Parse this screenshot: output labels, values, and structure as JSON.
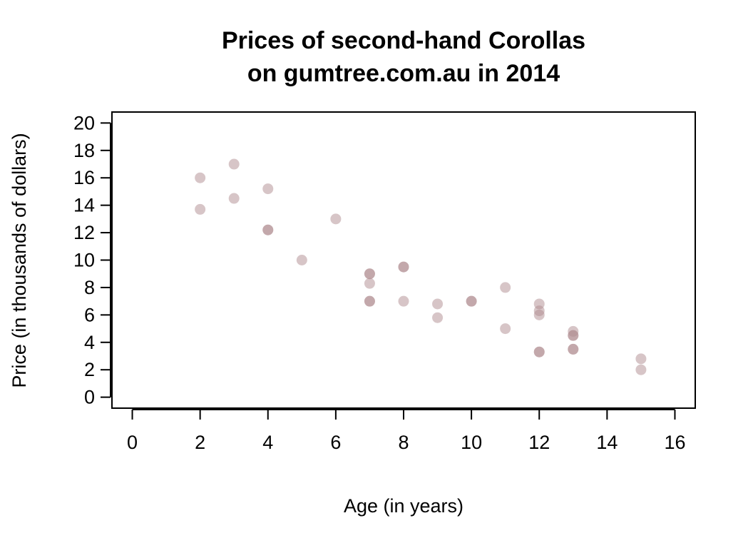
{
  "chart_data": {
    "type": "scatter",
    "title": [
      "Prices of second-hand Corollas",
      "on gumtree.com.au in 2014"
    ],
    "xlabel": "Age (in years)",
    "ylabel": "Price (in thousands of dollars)",
    "xlim": [
      -0.6,
      16.6
    ],
    "ylim": [
      -0.8,
      20.8
    ],
    "xticks": [
      0,
      2,
      4,
      6,
      8,
      10,
      12,
      14,
      16
    ],
    "yticks": [
      0,
      2,
      4,
      6,
      8,
      10,
      12,
      14,
      16,
      18,
      20
    ],
    "grid": false,
    "point_color": "#b08c8f",
    "point_opacity": 0.5,
    "points": [
      {
        "x": 2,
        "y": 16.0
      },
      {
        "x": 2,
        "y": 13.7
      },
      {
        "x": 3,
        "y": 17.0
      },
      {
        "x": 3,
        "y": 14.5
      },
      {
        "x": 4,
        "y": 15.2
      },
      {
        "x": 4,
        "y": 12.2
      },
      {
        "x": 4,
        "y": 12.2
      },
      {
        "x": 5,
        "y": 10.0
      },
      {
        "x": 6,
        "y": 13.0
      },
      {
        "x": 7,
        "y": 9.0
      },
      {
        "x": 7,
        "y": 9.0
      },
      {
        "x": 7,
        "y": 8.3
      },
      {
        "x": 7,
        "y": 7.0
      },
      {
        "x": 7,
        "y": 7.0
      },
      {
        "x": 8,
        "y": 9.5
      },
      {
        "x": 8,
        "y": 9.5
      },
      {
        "x": 8,
        "y": 7.0
      },
      {
        "x": 9,
        "y": 6.8
      },
      {
        "x": 9,
        "y": 5.8
      },
      {
        "x": 10,
        "y": 7.0
      },
      {
        "x": 10,
        "y": 7.0
      },
      {
        "x": 11,
        "y": 8.0
      },
      {
        "x": 11,
        "y": 5.0
      },
      {
        "x": 12,
        "y": 6.8
      },
      {
        "x": 12,
        "y": 6.3
      },
      {
        "x": 12,
        "y": 6.0
      },
      {
        "x": 12,
        "y": 3.3
      },
      {
        "x": 12,
        "y": 3.3
      },
      {
        "x": 13,
        "y": 4.8
      },
      {
        "x": 13,
        "y": 4.5
      },
      {
        "x": 13,
        "y": 4.5
      },
      {
        "x": 13,
        "y": 3.5
      },
      {
        "x": 13,
        "y": 3.5
      },
      {
        "x": 15,
        "y": 2.8
      },
      {
        "x": 15,
        "y": 2.0
      }
    ]
  }
}
